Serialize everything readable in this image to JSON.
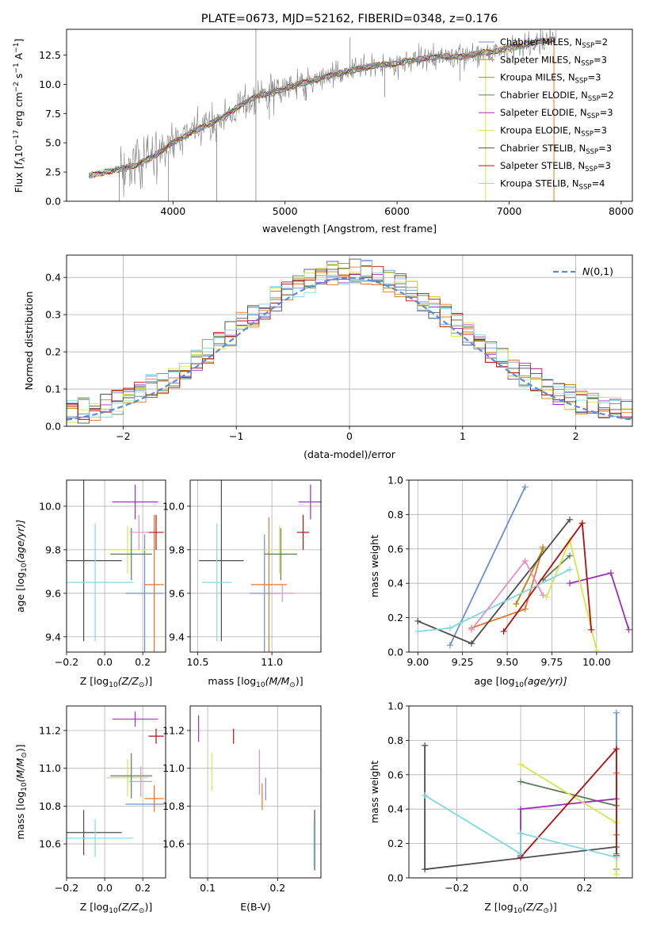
{
  "figure_title": "PLATE=0673, MJD=52162, FIBERID=0348, z=0.176",
  "colors": {
    "Chabrier MILES": "#6a8fd6",
    "Salpeter MILES": "#e8762a",
    "Kroupa MILES": "#b8860b",
    "Chabrier ELODIE": "#5a7d5a",
    "Salpeter ELODIE": "#9b30b8",
    "Kroupa ELODIE": "#d4e84a",
    "Chabrier STELIB": "#4d4d4d",
    "Salpeter STELIB": "#b01010",
    "Kroupa STELIB": "#80d8e0",
    "pink": "#e58fc0",
    "gaussian": "#5b8bd8",
    "data": "#808080"
  },
  "chart_data": [
    {
      "id": "spectrum",
      "type": "line",
      "title": "PLATE=0673, MJD=52162, FIBERID=0348, z=0.176",
      "xlabel": "wavelength [Angstrom, rest frame]",
      "ylabel_parts": [
        "Flux [",
        "f",
        "λ",
        "10",
        "−17",
        " erg cm",
        "−2",
        " s",
        "−1",
        " A",
        "−1",
        "]"
      ],
      "xlim": [
        3050,
        8100
      ],
      "ylim": [
        0,
        14.7
      ],
      "xticks": [
        4000,
        5000,
        6000,
        7000,
        8000
      ],
      "yticks": [
        0.0,
        2.5,
        5.0,
        7.5,
        10.0,
        12.5
      ],
      "grid": false,
      "legend_position": "right",
      "legend": [
        {
          "name": "Chabrier MILES",
          "sub": "2"
        },
        {
          "name": "Salpeter MILES",
          "sub": "3"
        },
        {
          "name": "Kroupa MILES",
          "sub": "3"
        },
        {
          "name": "Chabrier ELODIE",
          "sub": "2"
        },
        {
          "name": "Salpeter ELODIE",
          "sub": "3"
        },
        {
          "name": "Kroupa ELODIE",
          "sub": "3"
        },
        {
          "name": "Chabrier STELIB",
          "sub": "3"
        },
        {
          "name": "Salpeter STELIB",
          "sub": "3"
        },
        {
          "name": "Kroupa STELIB",
          "sub": "4"
        }
      ],
      "legend_prefix": ", N",
      "legend_ssp": "SSP",
      "continuum": {
        "x": [
          3250,
          3400,
          3550,
          3700,
          3850,
          4000,
          4150,
          4300,
          4450,
          4600,
          4750,
          4900,
          5050,
          5200,
          5350,
          5500,
          5650,
          5800,
          5950,
          6100,
          6250,
          6400,
          6550,
          6700,
          6850,
          7000,
          7150,
          7300,
          7400
        ],
        "y": [
          2.2,
          2.5,
          2.8,
          3.2,
          4.0,
          5.0,
          5.8,
          6.5,
          7.2,
          8.2,
          9.0,
          9.3,
          9.8,
          10.2,
          10.6,
          11.0,
          11.3,
          11.6,
          11.7,
          12.0,
          12.2,
          12.4,
          12.3,
          12.6,
          12.8,
          13.1,
          13.4,
          13.7,
          13.8
        ]
      },
      "spikes": [
        {
          "x": 3520,
          "y0": 0,
          "y1": 2.6
        },
        {
          "x": 3960,
          "y0": 0,
          "y1": 4.3
        },
        {
          "x": 4390,
          "y0": 0,
          "y1": 6.6
        },
        {
          "x": 4740,
          "y0": 0,
          "y1": 14.7
        },
        {
          "x": 4860,
          "y0": 7.0,
          "y1": 9.4
        },
        {
          "x": 5180,
          "y0": 8.6,
          "y1": 10.1
        },
        {
          "x": 5580,
          "y0": 11.6,
          "y1": 14.0
        },
        {
          "x": 5890,
          "y0": 8.9,
          "y1": 11.4
        },
        {
          "x": 6560,
          "y0": 10.3,
          "y1": 12.1
        }
      ]
    },
    {
      "id": "residuals",
      "type": "histogram",
      "xlabel": "(data-model)/error",
      "ylabel": "Normed distribution",
      "xlim": [
        -2.5,
        2.5
      ],
      "ylim": [
        0,
        0.46
      ],
      "xticks": [
        -2,
        -1,
        0,
        1,
        2
      ],
      "yticks": [
        0.0,
        0.1,
        0.2,
        0.3,
        0.4
      ],
      "grid": true,
      "legend_position": "upper right",
      "legend_label": "N(0,1)",
      "bin_width": 0.1
    },
    {
      "id": "age_vs_Z",
      "type": "errorbar",
      "xlabel_parts": [
        "Z [log",
        "10",
        "(Z/Z",
        "⊙",
        ")]"
      ],
      "ylabel_parts": [
        "age  [log",
        "10",
        "(age/yr)]"
      ],
      "xlim": [
        -0.2,
        0.32
      ],
      "ylim": [
        9.33,
        10.12
      ],
      "xticks": [
        -0.2,
        0.0,
        0.2
      ],
      "yticks": [
        9.4,
        9.6,
        9.8,
        10.0
      ],
      "grid": true,
      "points": [
        {
          "series": "Chabrier STELIB",
          "x": -0.11,
          "xerr": 0.2,
          "y": 9.75,
          "yerr": 0.37
        },
        {
          "series": "Kroupa STELIB",
          "x": -0.05,
          "xerr": 0.2,
          "y": 9.65,
          "yerr": 0.27
        },
        {
          "series": "Chabrier MILES",
          "x": 0.21,
          "xerr": 0.1,
          "y": 9.6,
          "yerr": 0.27
        },
        {
          "series": "Salpeter MILES",
          "x": 0.26,
          "xerr": 0.05,
          "y": 9.64,
          "yerr": 0.32
        },
        {
          "series": "Kroupa ELODIE",
          "x": 0.12,
          "xerr": 0.11,
          "y": 9.8,
          "yerr": 0.11
        },
        {
          "series": "Chabrier ELODIE",
          "x": 0.14,
          "xerr": 0.11,
          "y": 9.78,
          "yerr": 0.12
        },
        {
          "series": "pink",
          "x": 0.18,
          "xerr": 0.05,
          "y": 9.88,
          "yerr": 0.08
        },
        {
          "series": "Salpeter ELODIE",
          "x": 0.16,
          "xerr": 0.12,
          "y": 10.02,
          "yerr": 0.08
        },
        {
          "series": "Salpeter STELIB",
          "x": 0.27,
          "xerr": 0.04,
          "y": 9.88,
          "yerr": 0.08
        }
      ]
    },
    {
      "id": "age_vs_mass",
      "type": "errorbar",
      "xlabel_parts": [
        "mass [log",
        "10",
        "(M/M",
        "⊙",
        ")]"
      ],
      "xlim": [
        10.45,
        11.33
      ],
      "ylim": [
        9.33,
        10.12
      ],
      "xticks": [
        10.5,
        11.0
      ],
      "yticks": [
        9.4,
        9.6,
        9.8,
        10.0
      ],
      "grid": true,
      "points": [
        {
          "series": "Chabrier STELIB",
          "x": 10.66,
          "xerr": 0.15,
          "y": 9.75,
          "yerr": 0.37
        },
        {
          "series": "Kroupa STELIB",
          "x": 10.63,
          "xerr": 0.1,
          "y": 9.65,
          "yerr": 0.27
        },
        {
          "series": "Chabrier MILES",
          "x": 10.95,
          "xerr": 0.1,
          "y": 9.6,
          "yerr": 0.27
        },
        {
          "series": "Salpeter MILES",
          "x": 10.98,
          "xerr": 0.12,
          "y": 9.64,
          "yerr": 0.31
        },
        {
          "series": "pink",
          "x": 11.07,
          "xerr": 0.08,
          "y": 9.6,
          "yerr": 0.04
        },
        {
          "series": "Kroupa ELODIE",
          "x": 11.05,
          "xerr": 0.1,
          "y": 9.8,
          "yerr": 0.11
        },
        {
          "series": "Chabrier ELODIE",
          "x": 11.06,
          "xerr": 0.11,
          "y": 9.78,
          "yerr": 0.12
        },
        {
          "series": "Salpeter ELODIE",
          "x": 11.26,
          "xerr": 0.08,
          "y": 10.02,
          "yerr": 0.08
        },
        {
          "series": "Salpeter STELIB",
          "x": 11.21,
          "xerr": 0.04,
          "y": 9.88,
          "yerr": 0.08
        }
      ]
    },
    {
      "id": "weight_vs_age",
      "type": "line",
      "xlabel_parts": [
        "age  [log",
        "10",
        "(age/yr)]"
      ],
      "ylabel": "mass weight",
      "xlim": [
        8.95,
        10.2
      ],
      "ylim": [
        0,
        1
      ],
      "xticks": [
        9.0,
        9.25,
        9.5,
        9.75,
        10.0
      ],
      "xtick_labels": [
        "9.00",
        "9.25",
        "9.50",
        "9.75",
        "10.00"
      ],
      "yticks": [
        0.0,
        0.2,
        0.4,
        0.6,
        0.8,
        1.0
      ],
      "grid": true,
      "series": [
        {
          "name": "Chabrier MILES",
          "x": [
            9.18,
            9.6
          ],
          "y": [
            0.04,
            0.96
          ]
        },
        {
          "name": "Salpeter MILES",
          "x": [
            9.3,
            9.6,
            9.7
          ],
          "y": [
            0.14,
            0.25,
            0.61
          ]
        },
        {
          "name": "Kroupa MILES",
          "x": [
            9.55,
            9.7
          ],
          "y": [
            0.28,
            0.6
          ]
        },
        {
          "name": "Chabrier ELODIE",
          "x": [
            9.7,
            9.85
          ],
          "y": [
            0.42,
            0.56
          ]
        },
        {
          "name": "Salpeter ELODIE",
          "x": [
            9.85,
            10.08,
            10.18
          ],
          "y": [
            0.4,
            0.46,
            0.13
          ]
        },
        {
          "name": "Kroupa ELODIE",
          "x": [
            9.72,
            9.85,
            10.0
          ],
          "y": [
            0.32,
            0.65,
            0.01
          ]
        },
        {
          "name": "Chabrier STELIB",
          "x": [
            9.0,
            9.3,
            9.85
          ],
          "y": [
            0.18,
            0.05,
            0.77
          ]
        },
        {
          "name": "Salpeter STELIB",
          "x": [
            9.48,
            9.92,
            9.97
          ],
          "y": [
            0.12,
            0.75,
            0.13
          ]
        },
        {
          "name": "Kroupa STELIB",
          "x": [
            9.0,
            9.18,
            9.85
          ],
          "y": [
            0.12,
            0.14,
            0.48
          ]
        },
        {
          "name": "pink",
          "x": [
            9.3,
            9.6,
            9.7
          ],
          "y": [
            0.13,
            0.53,
            0.33
          ]
        }
      ]
    },
    {
      "id": "mass_vs_Z",
      "type": "errorbar",
      "xlabel_parts": [
        "Z [log",
        "10",
        "(Z/Z",
        "⊙",
        ")]"
      ],
      "ylabel_parts": [
        "mass [log",
        "10",
        "(M/M",
        "⊙",
        ")]"
      ],
      "xlim": [
        -0.2,
        0.32
      ],
      "ylim": [
        10.42,
        11.33
      ],
      "xticks": [
        -0.2,
        0.0,
        0.2
      ],
      "yticks": [
        10.6,
        10.8,
        11.0,
        11.2
      ],
      "grid": true,
      "points": [
        {
          "series": "Chabrier STELIB",
          "x": -0.11,
          "xerr": 0.2,
          "y": 10.66,
          "yerr": 0.12
        },
        {
          "series": "Kroupa STELIB",
          "x": -0.05,
          "xerr": 0.2,
          "y": 10.63,
          "yerr": 0.1
        },
        {
          "series": "Chabrier MILES",
          "x": 0.21,
          "xerr": 0.1,
          "y": 10.81,
          "yerr": 0.0
        },
        {
          "series": "Salpeter MILES",
          "x": 0.26,
          "xerr": 0.05,
          "y": 10.84,
          "yerr": 0.07
        },
        {
          "series": "Kroupa ELODIE",
          "x": 0.12,
          "xerr": 0.11,
          "y": 10.95,
          "yerr": 0.1
        },
        {
          "series": "Chabrier ELODIE",
          "x": 0.14,
          "xerr": 0.11,
          "y": 10.96,
          "yerr": 0.12
        },
        {
          "series": "pink",
          "x": 0.19,
          "xerr": 0.06,
          "y": 10.93,
          "yerr": 0.08
        },
        {
          "series": "Salpeter ELODIE",
          "x": 0.16,
          "xerr": 0.12,
          "y": 11.26,
          "yerr": 0.04
        },
        {
          "series": "Salpeter STELIB",
          "x": 0.27,
          "xerr": 0.04,
          "y": 11.17,
          "yerr": 0.04
        }
      ]
    },
    {
      "id": "mass_vs_EBV",
      "type": "errorbar",
      "xlabel": "E(B-V)",
      "xlim": [
        0.075,
        0.262
      ],
      "ylim": [
        10.42,
        11.33
      ],
      "xticks": [
        0.1,
        0.2
      ],
      "yticks": [
        10.6,
        10.8,
        11.0,
        11.2
      ],
      "grid": true,
      "points": [
        {
          "series": "Salpeter ELODIE",
          "x": 0.087,
          "xerr": 0.0,
          "y": 11.21,
          "yerr": 0.07
        },
        {
          "series": "Kroupa ELODIE",
          "x": 0.106,
          "xerr": 0.0,
          "y": 10.98,
          "yerr": 0.1
        },
        {
          "series": "Salpeter STELIB",
          "x": 0.137,
          "xerr": 0.0,
          "y": 11.17,
          "yerr": 0.04
        },
        {
          "series": "pink",
          "x": 0.174,
          "xerr": 0.0,
          "y": 10.98,
          "yerr": 0.12
        },
        {
          "series": "Salpeter MILES",
          "x": 0.178,
          "xerr": 0.0,
          "y": 10.85,
          "yerr": 0.07
        },
        {
          "series": "Chabrier MILES",
          "x": 0.183,
          "xerr": 0.0,
          "y": 10.89,
          "yerr": 0.06
        },
        {
          "series": "Chabrier STELIB",
          "x": 0.253,
          "xerr": 0.0,
          "y": 10.62,
          "yerr": 0.16
        },
        {
          "series": "Kroupa STELIB",
          "x": 0.252,
          "xerr": 0.0,
          "y": 10.6,
          "yerr": 0.12
        }
      ]
    },
    {
      "id": "weight_vs_Z",
      "type": "line",
      "xlabel_parts": [
        "Z [log",
        "10",
        "(Z/Z",
        "⊙",
        ")]"
      ],
      "ylabel": "mass weight",
      "xlim": [
        -0.35,
        0.35
      ],
      "ylim": [
        0,
        1
      ],
      "xticks": [
        -0.2,
        0.0,
        0.2
      ],
      "yticks": [
        0.0,
        0.2,
        0.4,
        0.6,
        0.8,
        1.0
      ],
      "grid": true,
      "series": [
        {
          "name": "Chabrier MILES",
          "x": [
            0.3,
            0.3
          ],
          "y": [
            0.05,
            0.96
          ]
        },
        {
          "name": "Salpeter MILES",
          "x": [
            0.3,
            0.3,
            0.3
          ],
          "y": [
            0.14,
            0.25,
            0.61
          ]
        },
        {
          "name": "Chabrier ELODIE",
          "x": [
            0.0,
            0.3
          ],
          "y": [
            0.56,
            0.42
          ]
        },
        {
          "name": "Salpeter ELODIE",
          "x": [
            0.0,
            0.0,
            0.3
          ],
          "y": [
            0.13,
            0.4,
            0.46
          ]
        },
        {
          "name": "Kroupa ELODIE",
          "x": [
            0.0,
            0.3,
            0.3
          ],
          "y": [
            0.66,
            0.32,
            0.02
          ]
        },
        {
          "name": "Chabrier STELIB",
          "x": [
            -0.3,
            -0.3,
            0.3
          ],
          "y": [
            0.77,
            0.05,
            0.18
          ]
        },
        {
          "name": "Salpeter STELIB",
          "x": [
            0.0,
            0.3,
            0.3
          ],
          "y": [
            0.12,
            0.75,
            0.13
          ]
        },
        {
          "name": "Kroupa STELIB",
          "x": [
            -0.3,
            0.0,
            0.0,
            0.3
          ],
          "y": [
            0.48,
            0.14,
            0.26,
            0.12
          ]
        }
      ]
    }
  ]
}
